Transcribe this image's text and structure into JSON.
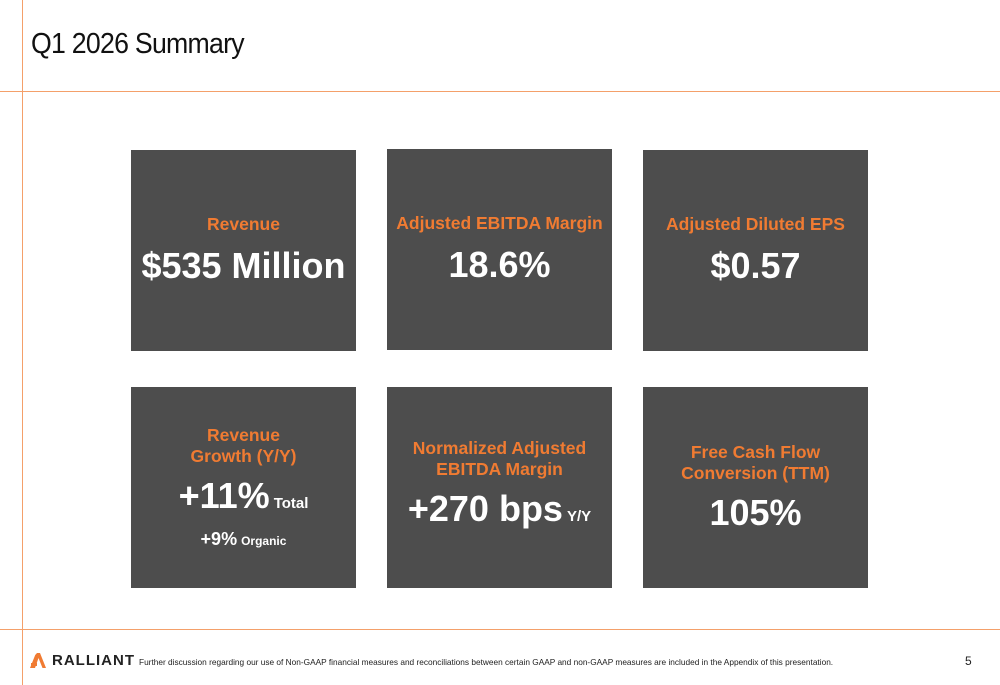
{
  "slide": {
    "title": "Q1 2026 Summary",
    "page_number": "5"
  },
  "cards": [
    {
      "label": "Revenue",
      "value": "$535 Million"
    },
    {
      "label": "Adjusted EBITDA Margin",
      "value": "18.6%"
    },
    {
      "label": "Adjusted Diluted EPS",
      "value": "$0.57"
    },
    {
      "label": "Revenue\nGrowth (Y/Y)",
      "value": "+11%",
      "suffix": "Total",
      "secondary_value": "+9%",
      "secondary_suffix": "Organic"
    },
    {
      "label": "Normalized Adjusted\nEBITDA Margin",
      "value": "+270 bps",
      "suffix": "Y/Y"
    },
    {
      "label": "Free Cash Flow\nConversion (TTM)",
      "value": "105%"
    }
  ],
  "footer": {
    "logo_text": "RALLIANT",
    "note": "Further discussion regarding our use of Non-GAAP financial measures and reconciliations between certain GAAP and non-GAAP measures are included in the Appendix of this presentation."
  },
  "colors": {
    "accent": "#f07b32",
    "card_bg": "#4d4d4d",
    "rule": "#f4a06a"
  }
}
